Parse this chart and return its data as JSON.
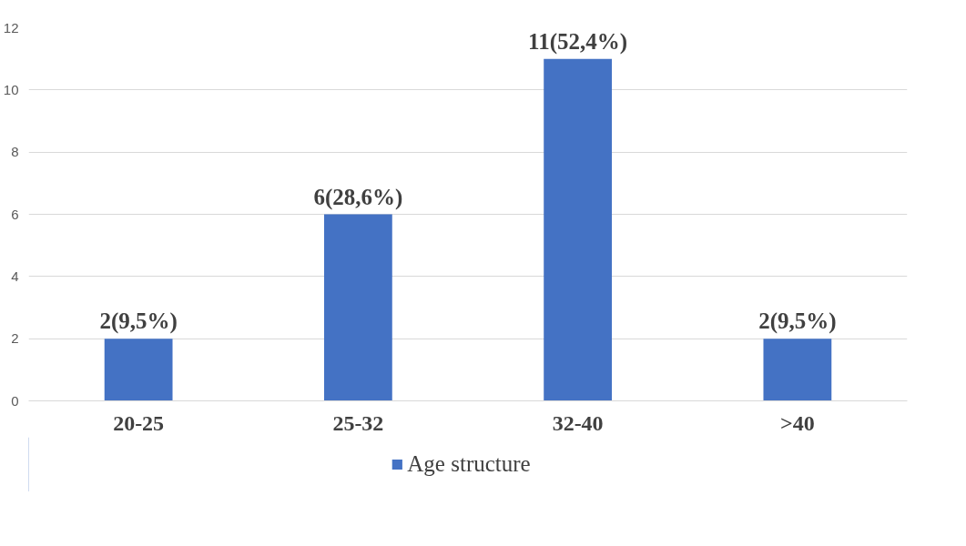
{
  "chart_data": {
    "type": "bar",
    "categories": [
      "20-25",
      "25-32",
      "32-40",
      ">40"
    ],
    "series": [
      {
        "name": "Age structure",
        "color": "#4472c4",
        "values": [
          2,
          6,
          11,
          2
        ],
        "value_labels": [
          "2(9,5%)",
          "6(28,6%)",
          "11(52,4%)",
          "2(9,5%)"
        ]
      }
    ],
    "ylim": [
      0,
      12
    ],
    "yticks": [
      0,
      2,
      4,
      6,
      8,
      10,
      12
    ],
    "grid": "y",
    "legend": "bottom"
  }
}
